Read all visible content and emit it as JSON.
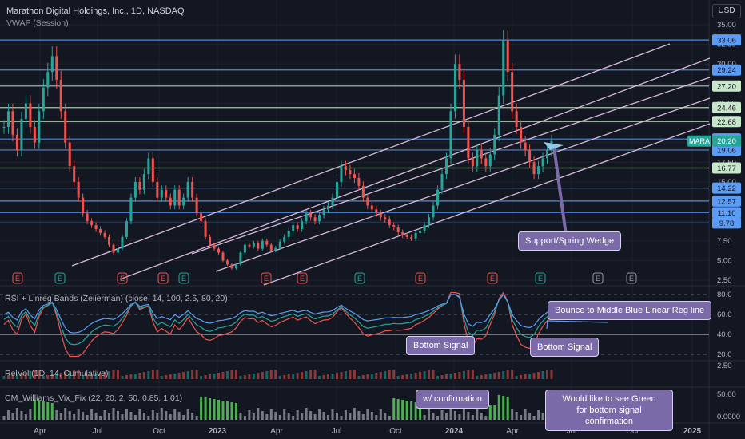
{
  "header": {
    "title": "Marathon Digital Holdings, Inc., 1D, NASDAQ",
    "indicator": "VWAP (Session)",
    "currency": "USD"
  },
  "colors": {
    "background": "#131722",
    "up": "#26a69a",
    "down": "#ef5350",
    "hline": "#5b9cf6",
    "channel": "#e9c9ec",
    "note_bg": "#7a6aa8",
    "price_tag": "#26a69a"
  },
  "panels": {
    "rsi_label": "RSI + Linreg Bands (Zeiierman) (close, 14, 100, 2.5, 80, 20)",
    "relvol_label": "RelVol (1D, 14, Cumulative)",
    "cm_label": "CM_Williams_Vix_Fix (22, 20, 2, 50, 0.85, 1.01)"
  },
  "annotations": {
    "wedge": "Support/Spring Wedge",
    "bounce": "Bounce to Middle Blue Linear Reg line",
    "bottom1": "Bottom Signal",
    "bottom2": "Bottom Signal",
    "confirmation": "w/ confirmation",
    "green_line1": "Would like to see Green",
    "green_line2": "for bottom signal confirmation"
  },
  "chart_data": {
    "type": "candlestick",
    "symbol": "MARA",
    "last_price": "20.20",
    "price_axis_ticks": [
      "35.00",
      "32.50",
      "30.00",
      "27.50",
      "25.00",
      "22.50",
      "20.00",
      "17.50",
      "15.00",
      "12.50",
      "10.00",
      "7.50",
      "5.00",
      "2.50"
    ],
    "price_tick_values": [
      35,
      32.5,
      30,
      27.5,
      25,
      22.5,
      20,
      17.5,
      15,
      12.5,
      10,
      7.5,
      5,
      2.5
    ],
    "horizontal_levels": [
      {
        "label": "33.06",
        "value": 33.06,
        "color": "#5b9cf6"
      },
      {
        "label": "29.24",
        "value": 29.24,
        "color": "#5b9cf6"
      },
      {
        "label": "27.20",
        "value": 27.2,
        "color": "#c8e6c9"
      },
      {
        "label": "24.46",
        "value": 24.46,
        "color": "#c8e6c9"
      },
      {
        "label": "22.68",
        "value": 22.68,
        "color": "#c8e6c9"
      },
      {
        "label": "20.46",
        "value": 20.46,
        "color": "#5b9cf6"
      },
      {
        "label": "19.06",
        "value": 19.06,
        "color": "#5b9cf6"
      },
      {
        "label": "16.77",
        "value": 16.77,
        "color": "#c8e6c9"
      },
      {
        "label": "14.22",
        "value": 14.22,
        "color": "#5b9cf6"
      },
      {
        "label": "12.57",
        "value": 12.57,
        "color": "#5b9cf6"
      },
      {
        "label": "11.10",
        "value": 11.1,
        "color": "#5b9cf6"
      },
      {
        "label": "9.78",
        "value": 9.78,
        "color": "#5b9cf6"
      }
    ],
    "x_axis_labels": [
      "Apr",
      "Jul",
      "Oct",
      "2023",
      "Apr",
      "Jul",
      "Oct",
      "2024",
      "Apr",
      "Jul",
      "Oct",
      "2025"
    ],
    "rsi_ticks": [
      "80.0",
      "60.0",
      "40.0",
      "20.0"
    ],
    "rsi_tick_values": [
      80,
      60,
      40,
      20
    ],
    "relvol_ticks": [
      "2.50"
    ],
    "cm_ticks": [
      "50.00",
      "0.0000"
    ],
    "earnings_marker": "E",
    "earnings_count": 13,
    "closes": [
      22,
      24,
      21,
      19,
      23,
      25,
      22,
      20,
      24,
      27,
      29,
      31,
      28,
      24,
      20,
      17,
      15,
      13,
      11,
      10,
      9.5,
      9,
      8.5,
      8,
      7,
      6,
      6.5,
      8,
      10,
      13,
      15,
      14,
      16,
      18,
      15,
      13,
      14,
      13,
      12,
      14,
      12,
      13,
      15,
      13,
      11,
      10,
      8,
      7,
      6.5,
      6,
      5,
      4.5,
      4,
      4.5,
      6,
      7,
      6.8,
      7.2,
      6.5,
      7.5,
      7,
      6.3,
      6.6,
      7.4,
      8,
      8.8,
      9.5,
      9,
      10,
      11,
      10.5,
      10,
      10.8,
      11.5,
      12,
      13,
      15,
      17,
      16.5,
      16,
      15.5,
      14.5,
      13,
      12,
      11.5,
      11,
      10.5,
      10.2,
      9.5,
      9.2,
      8.6,
      8.2,
      8,
      7.8,
      8.5,
      8.8,
      9.5,
      10.5,
      12,
      14,
      16,
      18,
      24,
      30,
      28,
      22,
      18,
      17,
      19,
      18,
      17,
      18.5,
      21,
      26,
      33,
      29,
      24,
      22,
      20,
      19,
      17.5,
      16,
      17,
      18,
      19,
      20.2
    ]
  }
}
